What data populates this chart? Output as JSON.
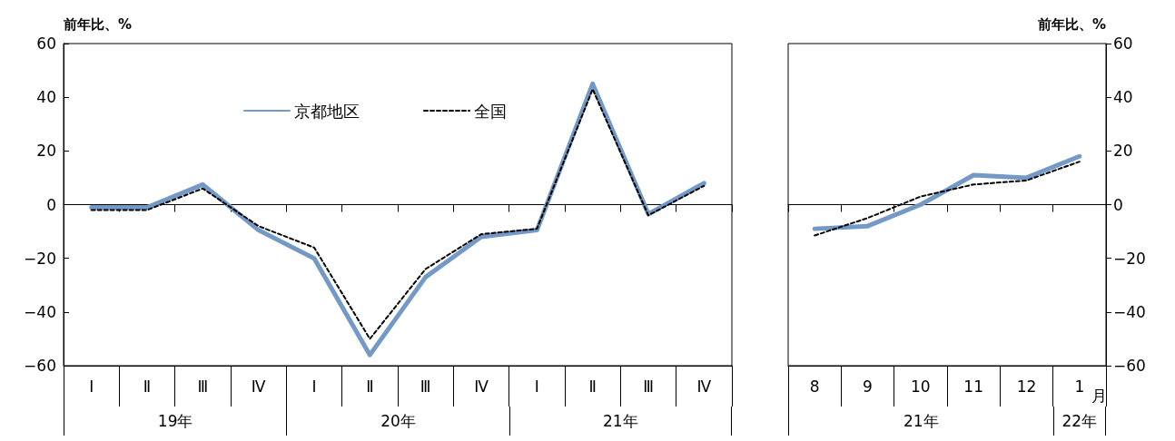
{
  "chart_data": [
    {
      "type": "line",
      "ylabel": "前年比、%",
      "categories": [
        "Ⅰ",
        "Ⅱ",
        "Ⅲ",
        "Ⅳ",
        "Ⅰ",
        "Ⅱ",
        "Ⅲ",
        "Ⅳ",
        "Ⅰ",
        "Ⅱ",
        "Ⅲ",
        "Ⅳ"
      ],
      "series": [
        {
          "name": "京都地区",
          "color": "#7399c6",
          "line_style": "solid",
          "values": [
            -1,
            -1,
            7.5,
            -9.5,
            -20,
            -56,
            -27,
            -12,
            -9.5,
            45,
            -3.5,
            8
          ]
        },
        {
          "name": "全国",
          "color": "#000000",
          "line_style": "dashed",
          "values": [
            -2,
            -2,
            6,
            -8,
            -16,
            -50,
            -24,
            -11,
            -9,
            43,
            -4,
            7
          ]
        }
      ],
      "ylim": [
        -60,
        60
      ],
      "yticks": [
        -60,
        -40,
        -20,
        0,
        20,
        40,
        60
      ],
      "legend": "top",
      "marker": "none",
      "annotations": [
        "19年",
        "20年",
        "21年"
      ]
    },
    {
      "type": "line",
      "ylabel": "前年比、%",
      "xlabel": "月",
      "categories": [
        "8",
        "9",
        "10",
        "11",
        "12",
        "1"
      ],
      "series": [
        {
          "color": "#7399c6",
          "line_style": "solid",
          "values": [
            -9,
            -8,
            0,
            11,
            10,
            18
          ]
        },
        {
          "color": "#000000",
          "line_style": "dashed",
          "values": [
            -11.5,
            -5,
            3,
            7.5,
            9,
            16
          ]
        }
      ],
      "ylim": [
        -60,
        60
      ],
      "yticks": [
        -60,
        -40,
        -20,
        0,
        20,
        40,
        60
      ],
      "legend": false,
      "marker": "none",
      "annotations": [
        "21年",
        "22年"
      ]
    }
  ]
}
